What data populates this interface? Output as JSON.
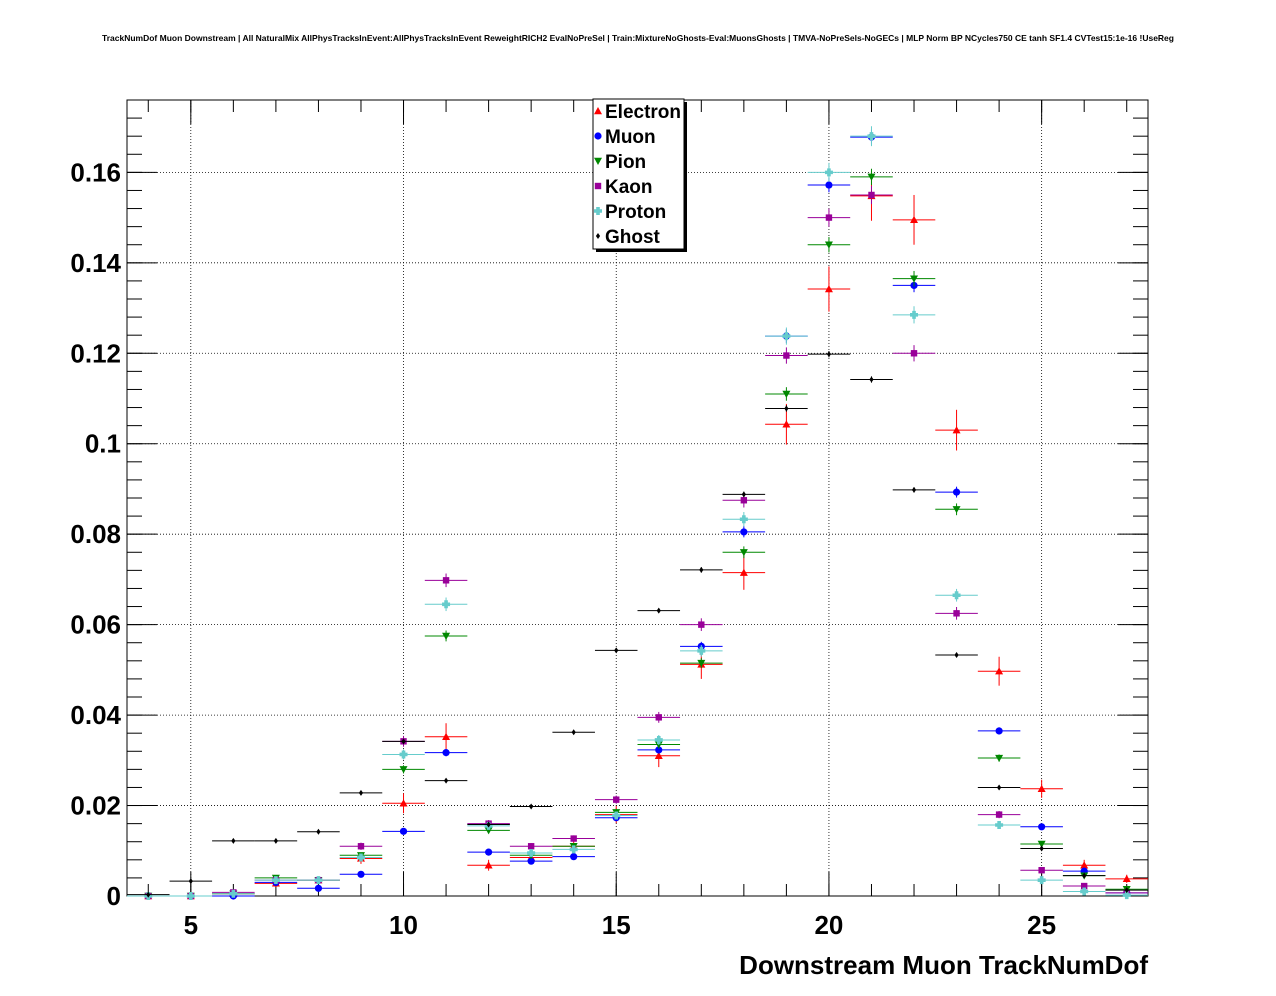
{
  "title": "TrackNumDof Muon Downstream | All NaturalMix AllPhysTracksInEvent:AllPhysTracksInEvent ReweightRICH2 EvalNoPreSel | Train:MixtureNoGhosts-Eval:MuonsGhosts | TMVA-NoPreSels-NoGECs | MLP Norm BP NCycles750 CE tanh SF1.4 CVTest15:1e-16 !UseReg",
  "chart_data": {
    "type": "scatter",
    "title": "TrackNumDof Muon Downstream | All NaturalMix AllPhysTracksInEvent:AllPhysTracksInEvent ReweightRICH2 EvalNoPreSel | Train:MixtureNoGhosts-Eval:MuonsGhosts | TMVA-NoPreSels-NoGECs | MLP Norm BP NCycles750 CE tanh SF1.4 CVTest15:1e-16 !UseReg",
    "xlabel": "Downstream Muon TrackNumDof",
    "ylabel": "",
    "xlim": [
      3.5,
      27.5
    ],
    "ylim": [
      0,
      0.176
    ],
    "xticks": [
      5,
      10,
      15,
      20,
      25
    ],
    "xtick_labels": [
      "5",
      "10",
      "15",
      "20",
      "25"
    ],
    "yticks": [
      0,
      0.02,
      0.04,
      0.06,
      0.08,
      0.1,
      0.12,
      0.14,
      0.16
    ],
    "ytick_labels": [
      "0",
      "0.02",
      "0.04",
      "0.06",
      "0.08",
      "0.1",
      "0.12",
      "0.14",
      "0.16"
    ],
    "grid": true,
    "legend_position": "top-center",
    "series": [
      {
        "name": "Electron",
        "color": "#ff0000",
        "marker": "triangle-up",
        "x": [
          4,
          5,
          6,
          7,
          8,
          9,
          10,
          11,
          12,
          13,
          14,
          15,
          16,
          17,
          18,
          19,
          20,
          21,
          22,
          23,
          24,
          25,
          26,
          27
        ],
        "y": [
          0,
          0,
          0.0005,
          0.0028,
          0.0035,
          0.0083,
          0.0205,
          0.0352,
          0.0068,
          0.0085,
          0.011,
          0.018,
          0.031,
          0.0512,
          0.0715,
          0.1043,
          0.1342,
          0.1548,
          0.1495,
          0.103,
          0.0497,
          0.0237,
          0.0068,
          0.0038
        ],
        "err": [
          0,
          0,
          0.0005,
          0.0008,
          0.0008,
          0.0012,
          0.0022,
          0.003,
          0.0012,
          0.0013,
          0.0015,
          0.0019,
          0.0025,
          0.0032,
          0.0038,
          0.0045,
          0.005,
          0.0055,
          0.0055,
          0.0045,
          0.0032,
          0.002,
          0.0012,
          0.0009
        ]
      },
      {
        "name": "Muon",
        "color": "#0000ff",
        "marker": "circle",
        "x": [
          4,
          5,
          6,
          7,
          8,
          9,
          10,
          11,
          12,
          13,
          14,
          15,
          16,
          17,
          18,
          19,
          20,
          21,
          22,
          23,
          24,
          25,
          26,
          27
        ],
        "y": [
          0,
          0,
          0,
          0.003,
          0.0017,
          0.0048,
          0.0143,
          0.0317,
          0.0097,
          0.0077,
          0.0087,
          0.0173,
          0.0323,
          0.0552,
          0.0805,
          0.1238,
          0.1572,
          0.1678,
          0.135,
          0.0893,
          0.0365,
          0.0153,
          0.0055,
          0.0007
        ],
        "err": [
          0,
          0,
          0,
          0.0003,
          0.0003,
          0.0004,
          0.0006,
          0.0008,
          0.0005,
          0.0004,
          0.0005,
          0.0006,
          0.0008,
          0.001,
          0.0012,
          0.0015,
          0.0016,
          0.0017,
          0.0015,
          0.0012,
          0.0008,
          0.0006,
          0.0004,
          0.0002
        ]
      },
      {
        "name": "Pion",
        "color": "#008800",
        "marker": "triangle-down",
        "x": [
          4,
          5,
          6,
          7,
          8,
          9,
          10,
          11,
          12,
          13,
          14,
          15,
          16,
          17,
          18,
          19,
          20,
          21,
          22,
          23,
          24,
          25,
          26,
          27
        ],
        "y": [
          0,
          0,
          0.0005,
          0.004,
          0.0035,
          0.009,
          0.028,
          0.0575,
          0.0145,
          0.009,
          0.011,
          0.0185,
          0.0335,
          0.0515,
          0.076,
          0.111,
          0.144,
          0.159,
          0.1365,
          0.0855,
          0.0305,
          0.0115,
          0.0045,
          0.0015
        ],
        "err": [
          0,
          0,
          0.0002,
          0.0004,
          0.0004,
          0.0006,
          0.0009,
          0.0012,
          0.0006,
          0.0005,
          0.0005,
          0.0007,
          0.0009,
          0.0011,
          0.0013,
          0.0015,
          0.0017,
          0.0018,
          0.0017,
          0.0013,
          0.0008,
          0.0005,
          0.0003,
          0.0002
        ]
      },
      {
        "name": "Kaon",
        "color": "#990099",
        "marker": "square",
        "x": [
          4,
          5,
          6,
          7,
          8,
          9,
          10,
          11,
          12,
          13,
          14,
          15,
          16,
          17,
          18,
          19,
          20,
          21,
          22,
          23,
          24,
          25,
          26,
          27
        ],
        "y": [
          0,
          0,
          0.0008,
          0.0035,
          0.0035,
          0.011,
          0.0342,
          0.0698,
          0.016,
          0.011,
          0.0127,
          0.0213,
          0.0395,
          0.06,
          0.0875,
          0.1195,
          0.15,
          0.155,
          0.12,
          0.0625,
          0.018,
          0.0057,
          0.0022,
          0.0007
        ],
        "err": [
          0,
          0,
          0.0003,
          0.0005,
          0.0005,
          0.0008,
          0.0012,
          0.0015,
          0.0008,
          0.0007,
          0.0007,
          0.0009,
          0.0012,
          0.0014,
          0.0016,
          0.0018,
          0.002,
          0.002,
          0.0018,
          0.0014,
          0.0008,
          0.0005,
          0.0003,
          0.0002
        ]
      },
      {
        "name": "Proton",
        "color": "#66cccc",
        "marker": "cross",
        "x": [
          4,
          5,
          6,
          7,
          8,
          9,
          10,
          11,
          12,
          13,
          14,
          15,
          16,
          17,
          18,
          19,
          20,
          21,
          22,
          23,
          24,
          25,
          26,
          27
        ],
        "y": [
          0,
          0,
          0.0005,
          0.0035,
          0.0035,
          0.0085,
          0.0313,
          0.0645,
          0.0155,
          0.0095,
          0.0103,
          0.0178,
          0.0345,
          0.0542,
          0.0833,
          0.1238,
          0.16,
          0.168,
          0.1285,
          0.0665,
          0.0157,
          0.0035,
          0.001,
          0.0002
        ],
        "err": [
          0,
          0,
          0.0002,
          0.0005,
          0.0005,
          0.0007,
          0.0011,
          0.0015,
          0.0008,
          0.0006,
          0.0006,
          0.0008,
          0.0011,
          0.0013,
          0.0016,
          0.0019,
          0.0021,
          0.0022,
          0.0019,
          0.0014,
          0.0007,
          0.0003,
          0.0002,
          0.0001
        ]
      },
      {
        "name": "Ghost",
        "color": "#000000",
        "marker": "diamond",
        "x": [
          4,
          5,
          6,
          7,
          8,
          9,
          10,
          11,
          12,
          13,
          14,
          15,
          16,
          17,
          18,
          19,
          20,
          21,
          22,
          23,
          24,
          25,
          26,
          27
        ],
        "y": [
          0.0003,
          0.0033,
          0.0122,
          0.0122,
          0.0142,
          0.0228,
          0.0342,
          0.0255,
          0.0158,
          0.0198,
          0.0362,
          0.0543,
          0.0631,
          0.0721,
          0.0888,
          0.1078,
          0.1198,
          0.1142,
          0.0898,
          0.0533,
          0.024,
          0.0105,
          0.0045,
          0.0013
        ],
        "err": [
          0.0001,
          0.0002,
          0.0003,
          0.0003,
          0.0003,
          0.0004,
          0.0004,
          0.0004,
          0.0003,
          0.0004,
          0.0004,
          0.0005,
          0.0005,
          0.0006,
          0.0006,
          0.0007,
          0.0007,
          0.0007,
          0.0006,
          0.0005,
          0.0004,
          0.0003,
          0.0002,
          0.0001
        ]
      }
    ]
  }
}
